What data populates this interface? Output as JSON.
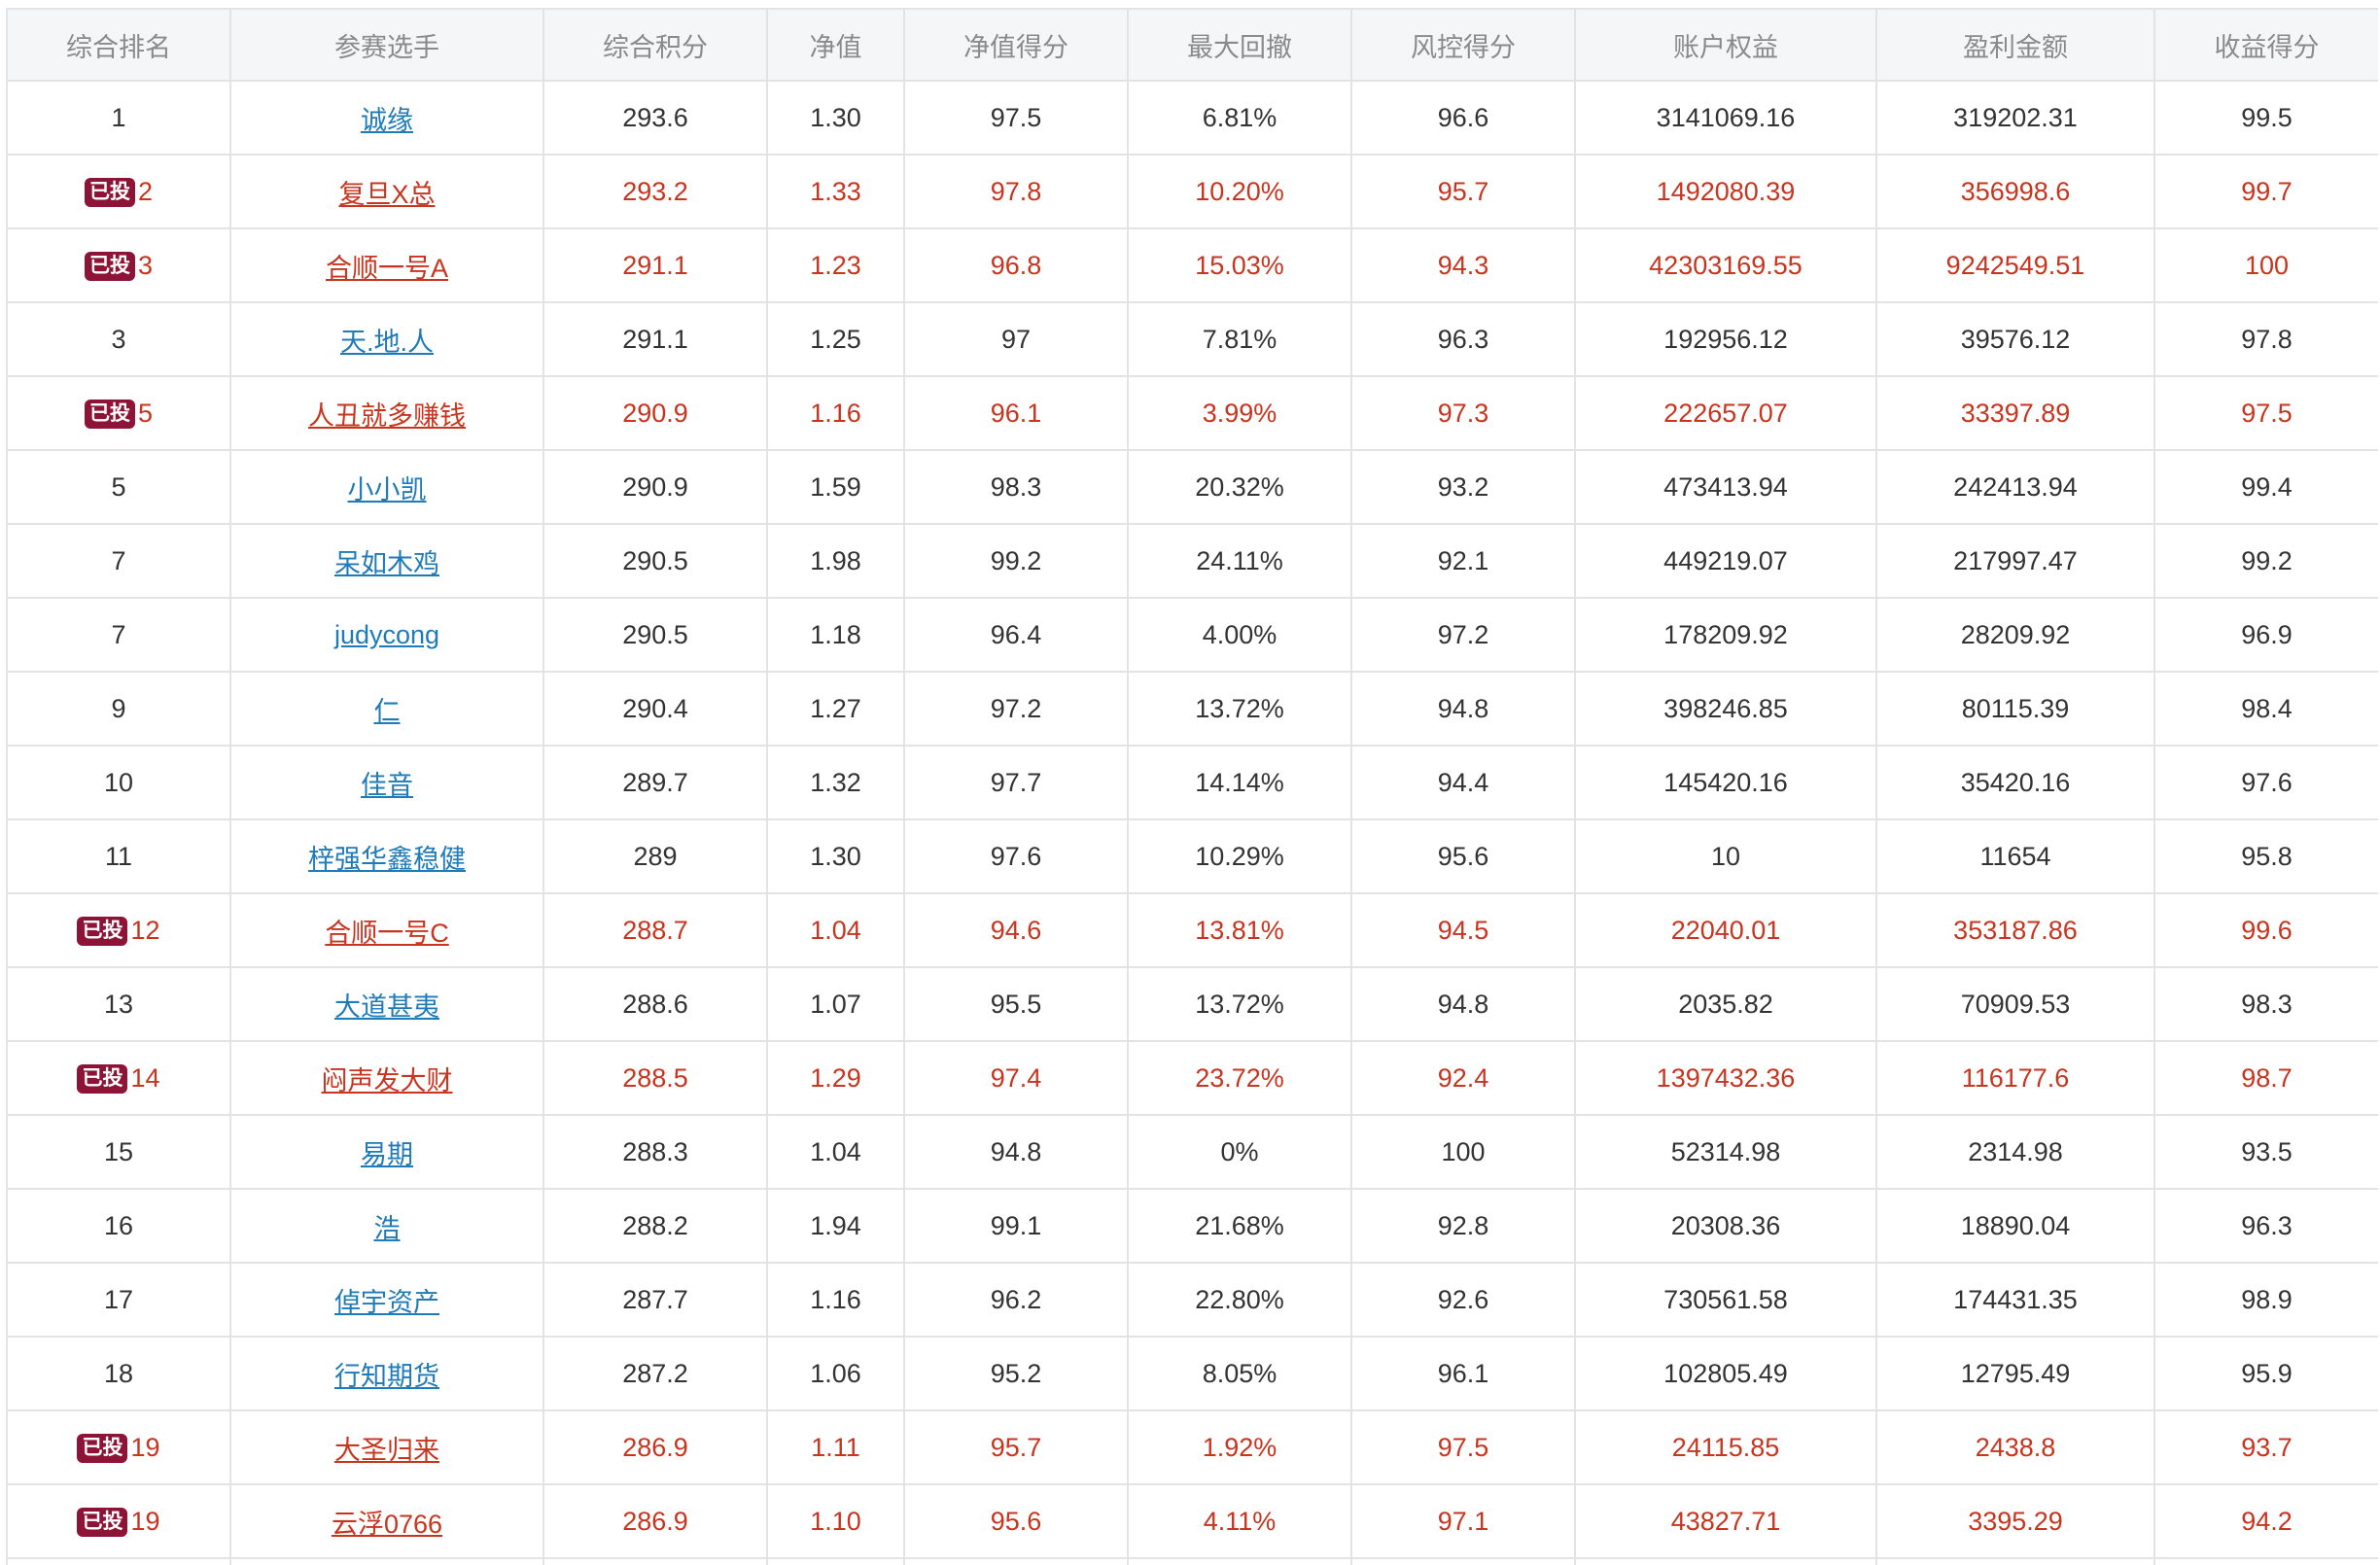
{
  "table": {
    "headers": [
      "综合排名",
      "参赛选手",
      "综合积分",
      "净值",
      "净值得分",
      "最大回撤",
      "风控得分",
      "账户权益",
      "盈利金额",
      "收益得分"
    ],
    "badge_text": "已投",
    "rows": [
      {
        "rank": "1",
        "invested": false,
        "player": "诚缘",
        "score": "293.6",
        "nav": "1.30",
        "nav_score": "97.5",
        "max_drawdown": "6.81%",
        "risk_score": "96.6",
        "equity": "3141069.16",
        "profit": "319202.31",
        "return_score": "99.5"
      },
      {
        "rank": "2",
        "invested": true,
        "player": "复旦X总",
        "score": "293.2",
        "nav": "1.33",
        "nav_score": "97.8",
        "max_drawdown": "10.20%",
        "risk_score": "95.7",
        "equity": "1492080.39",
        "profit": "356998.6",
        "return_score": "99.7"
      },
      {
        "rank": "3",
        "invested": true,
        "player": "合顺一号A",
        "score": "291.1",
        "nav": "1.23",
        "nav_score": "96.8",
        "max_drawdown": "15.03%",
        "risk_score": "94.3",
        "equity": "42303169.55",
        "profit": "9242549.51",
        "return_score": "100"
      },
      {
        "rank": "3",
        "invested": false,
        "player": "天.地.人",
        "score": "291.1",
        "nav": "1.25",
        "nav_score": "97",
        "max_drawdown": "7.81%",
        "risk_score": "96.3",
        "equity": "192956.12",
        "profit": "39576.12",
        "return_score": "97.8"
      },
      {
        "rank": "5",
        "invested": true,
        "player": "人丑就多赚钱",
        "score": "290.9",
        "nav": "1.16",
        "nav_score": "96.1",
        "max_drawdown": "3.99%",
        "risk_score": "97.3",
        "equity": "222657.07",
        "profit": "33397.89",
        "return_score": "97.5"
      },
      {
        "rank": "5",
        "invested": false,
        "player": "小小凯",
        "score": "290.9",
        "nav": "1.59",
        "nav_score": "98.3",
        "max_drawdown": "20.32%",
        "risk_score": "93.2",
        "equity": "473413.94",
        "profit": "242413.94",
        "return_score": "99.4"
      },
      {
        "rank": "7",
        "invested": false,
        "player": "呆如木鸡",
        "score": "290.5",
        "nav": "1.98",
        "nav_score": "99.2",
        "max_drawdown": "24.11%",
        "risk_score": "92.1",
        "equity": "449219.07",
        "profit": "217997.47",
        "return_score": "99.2"
      },
      {
        "rank": "7",
        "invested": false,
        "player": "judycong",
        "score": "290.5",
        "nav": "1.18",
        "nav_score": "96.4",
        "max_drawdown": "4.00%",
        "risk_score": "97.2",
        "equity": "178209.92",
        "profit": "28209.92",
        "return_score": "96.9"
      },
      {
        "rank": "9",
        "invested": false,
        "player": "仁",
        "score": "290.4",
        "nav": "1.27",
        "nav_score": "97.2",
        "max_drawdown": "13.72%",
        "risk_score": "94.8",
        "equity": "398246.85",
        "profit": "80115.39",
        "return_score": "98.4"
      },
      {
        "rank": "10",
        "invested": false,
        "player": "佳音",
        "score": "289.7",
        "nav": "1.32",
        "nav_score": "97.7",
        "max_drawdown": "14.14%",
        "risk_score": "94.4",
        "equity": "145420.16",
        "profit": "35420.16",
        "return_score": "97.6"
      },
      {
        "rank": "11",
        "invested": false,
        "player": "梓强华鑫稳健",
        "score": "289",
        "nav": "1.30",
        "nav_score": "97.6",
        "max_drawdown": "10.29%",
        "risk_score": "95.6",
        "equity": "10",
        "profit": "11654",
        "return_score": "95.8"
      },
      {
        "rank": "12",
        "invested": true,
        "player": "合顺一号C",
        "score": "288.7",
        "nav": "1.04",
        "nav_score": "94.6",
        "max_drawdown": "13.81%",
        "risk_score": "94.5",
        "equity": "22040.01",
        "profit": "353187.86",
        "return_score": "99.6"
      },
      {
        "rank": "13",
        "invested": false,
        "player": "大道甚夷",
        "score": "288.6",
        "nav": "1.07",
        "nav_score": "95.5",
        "max_drawdown": "13.72%",
        "risk_score": "94.8",
        "equity": "2035.82",
        "profit": "70909.53",
        "return_score": "98.3"
      },
      {
        "rank": "14",
        "invested": true,
        "player": "闷声发大财",
        "score": "288.5",
        "nav": "1.29",
        "nav_score": "97.4",
        "max_drawdown": "23.72%",
        "risk_score": "92.4",
        "equity": "1397432.36",
        "profit": "116177.6",
        "return_score": "98.7"
      },
      {
        "rank": "15",
        "invested": false,
        "player": "易期",
        "score": "288.3",
        "nav": "1.04",
        "nav_score": "94.8",
        "max_drawdown": "0%",
        "risk_score": "100",
        "equity": "52314.98",
        "profit": "2314.98",
        "return_score": "93.5"
      },
      {
        "rank": "16",
        "invested": false,
        "player": "浩",
        "score": "288.2",
        "nav": "1.94",
        "nav_score": "99.1",
        "max_drawdown": "21.68%",
        "risk_score": "92.8",
        "equity": "20308.36",
        "profit": "18890.04",
        "return_score": "96.3"
      },
      {
        "rank": "17",
        "invested": false,
        "player": "倬宇资产",
        "score": "287.7",
        "nav": "1.16",
        "nav_score": "96.2",
        "max_drawdown": "22.80%",
        "risk_score": "92.6",
        "equity": "730561.58",
        "profit": "174431.35",
        "return_score": "98.9"
      },
      {
        "rank": "18",
        "invested": false,
        "player": "行知期货",
        "score": "287.2",
        "nav": "1.06",
        "nav_score": "95.2",
        "max_drawdown": "8.05%",
        "risk_score": "96.1",
        "equity": "102805.49",
        "profit": "12795.49",
        "return_score": "95.9"
      },
      {
        "rank": "19",
        "invested": true,
        "player": "大圣归来",
        "score": "286.9",
        "nav": "1.11",
        "nav_score": "95.7",
        "max_drawdown": "1.92%",
        "risk_score": "97.5",
        "equity": "24115.85",
        "profit": "2438.8",
        "return_score": "93.7"
      },
      {
        "rank": "19",
        "invested": true,
        "player": "云浮0766",
        "score": "286.9",
        "nav": "1.10",
        "nav_score": "95.6",
        "max_drawdown": "4.11%",
        "risk_score": "97.1",
        "equity": "43827.71",
        "profit": "3395.29",
        "return_score": "94.2"
      },
      {
        "rank": "",
        "invested": false,
        "player": "",
        "score": "",
        "nav": "",
        "nav_score": "",
        "max_drawdown": "",
        "risk_score": "",
        "equity": "",
        "profit": "",
        "return_score": ""
      }
    ]
  },
  "colors": {
    "invested_text": "#c8341e",
    "link": "#1f7ab8",
    "badge_bg": "#8e1437",
    "header_bg": "#f5f6f8",
    "border": "#e3e3e3"
  }
}
